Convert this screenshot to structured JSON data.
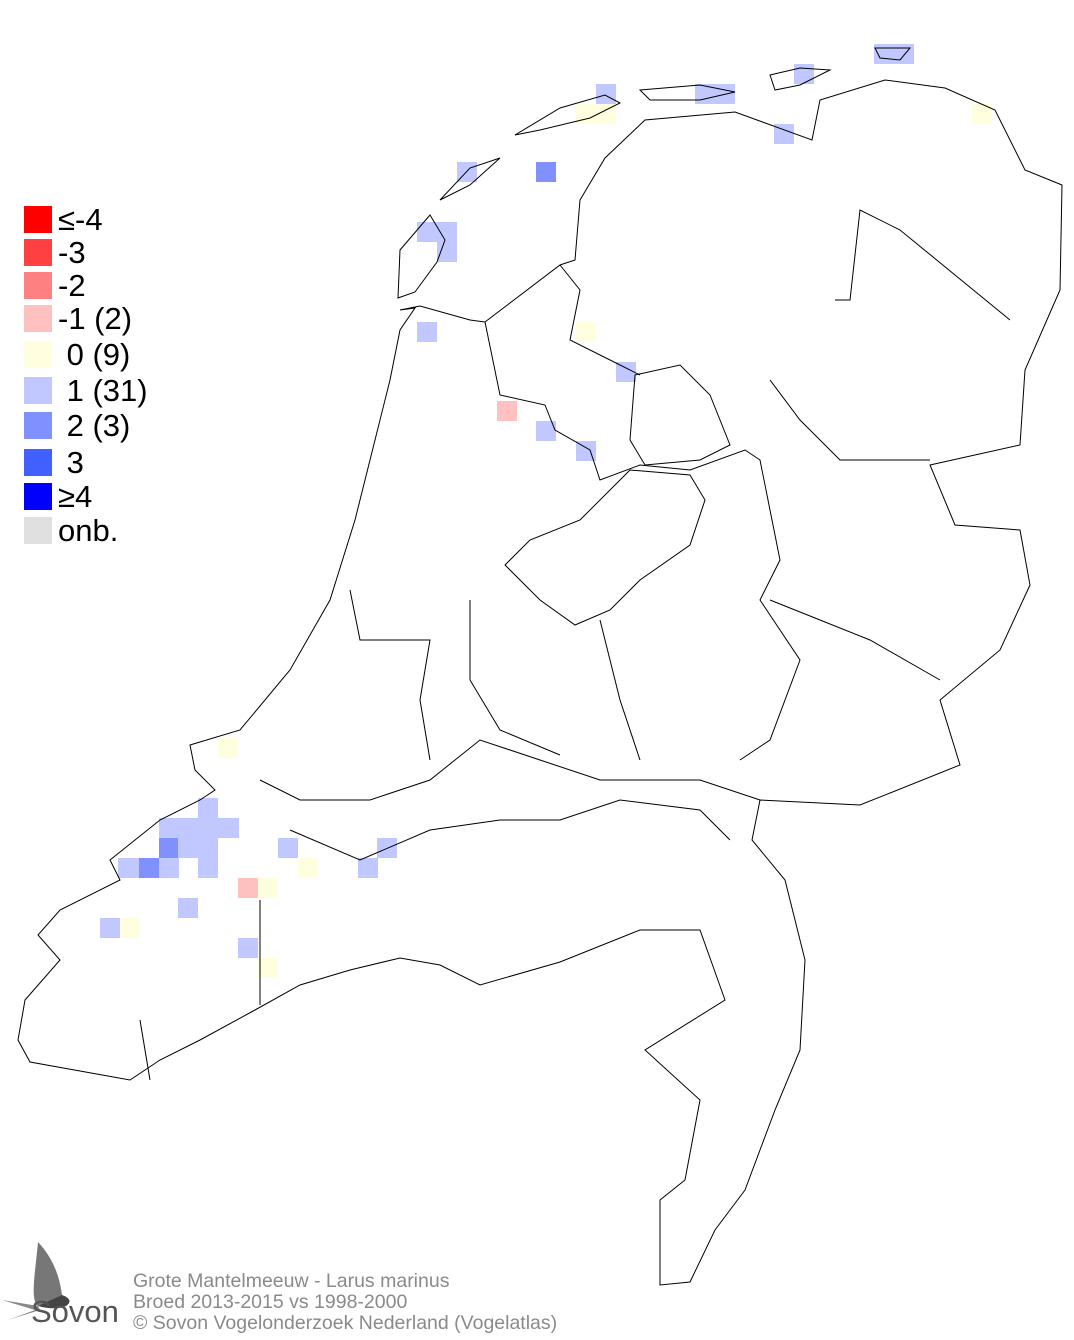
{
  "legend": {
    "items": [
      {
        "label": "≤-4",
        "color": "#ff0000"
      },
      {
        "label": "-3",
        "color": "#ff4040"
      },
      {
        "label": "-2",
        "color": "#ff8080"
      },
      {
        "label": "-1 (2)",
        "color": "#ffc0c0"
      },
      {
        "label": " 0 (9)",
        "color": "#ffffe0"
      },
      {
        "label": " 1 (31)",
        "color": "#c0c8ff"
      },
      {
        "label": " 2 (3)",
        "color": "#8090ff"
      },
      {
        "label": " 3",
        "color": "#4060ff"
      },
      {
        "label": "≥4",
        "color": "#0000ff"
      },
      {
        "label": "onb.",
        "color": "#e0e0e0"
      }
    ]
  },
  "footer": {
    "species": "Grote Mantelmeeuw - Larus marinus",
    "period": "Broed 2013-2015 vs 1998-2000",
    "copyright": "© Sovon Vogelonderzoek Nederland (Vogelatlas)"
  },
  "logo": {
    "text": "Sovon"
  },
  "map": {
    "outline_color": "#000000"
  }
}
